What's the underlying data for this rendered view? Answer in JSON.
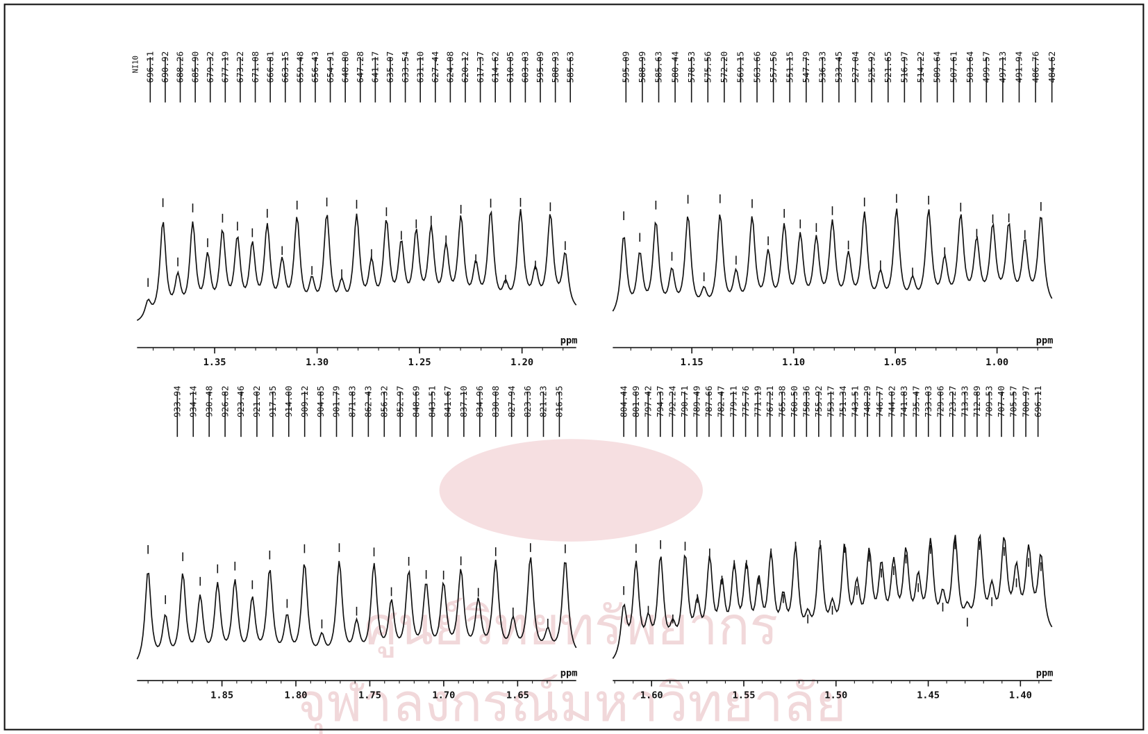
{
  "header_mark": "NI10",
  "panels": [
    {
      "peak_labels": [
        "696.11",
        "690.92",
        "688.26",
        "685.90",
        "679.32",
        "677.19",
        "673.22",
        "671.08",
        "666.81",
        "663.15",
        "659.48",
        "656.43",
        "654.91",
        "648.80",
        "647.28",
        "641.17",
        "635.07",
        "633.54",
        "631.10",
        "627.44",
        "624.08",
        "620.12",
        "617.37",
        "614.62",
        "610.05",
        "603.03",
        "595.09",
        "588.93",
        "585.63"
      ],
      "axis_ticks": [
        "1.35",
        "1.30",
        "1.25",
        "1.20"
      ],
      "axis_unit": "ppm"
    },
    {
      "peak_labels": [
        "595.09",
        "588.99",
        "585.63",
        "580.44",
        "578.53",
        "575.56",
        "572.20",
        "569.15",
        "563.66",
        "557.56",
        "551.15",
        "547.79",
        "536.33",
        "533.45",
        "527.04",
        "525.92",
        "521.65",
        "516.97",
        "514.22",
        "509.64",
        "507.61",
        "503.64",
        "499.57",
        "497.13",
        "491.94",
        "486.76",
        "484.62"
      ],
      "axis_ticks": [
        "1.15",
        "1.10",
        "1.05",
        "1.00"
      ],
      "axis_unit": "ppm"
    },
    {
      "peak_labels": [
        "933.94",
        "934.14",
        "930.48",
        "926.82",
        "923.46",
        "921.02",
        "917.35",
        "914.00",
        "909.12",
        "904.85",
        "901.79",
        "871.83",
        "862.43",
        "856.32",
        "852.97",
        "848.69",
        "843.51",
        "841.67",
        "837.10",
        "834.96",
        "830.08",
        "827.94",
        "823.36",
        "821.23",
        "816.35"
      ],
      "axis_ticks": [
        "1.85",
        "1.80",
        "1.75",
        "1.70",
        "1.65"
      ],
      "axis_unit": "ppm"
    },
    {
      "peak_labels": [
        "804.44",
        "801.09",
        "797.42",
        "794.37",
        "792.24",
        "790.71",
        "789.49",
        "787.66",
        "782.47",
        "779.11",
        "775.76",
        "771.19",
        "767.21",
        "765.38",
        "760.50",
        "758.36",
        "755.92",
        "753.17",
        "751.34",
        "743.51",
        "748.29",
        "746.77",
        "744.02",
        "741.83",
        "735.47",
        "733.03",
        "729.06",
        "723.27",
        "713.33",
        "712.89",
        "709.53",
        "707.40",
        "705.57",
        "700.97",
        "696.11"
      ],
      "axis_ticks": [
        "1.60",
        "1.55",
        "1.50",
        "1.45",
        "1.40"
      ],
      "axis_unit": "ppm"
    }
  ],
  "watermark": [
    "ศูนย์วิทยทรัพยากร",
    "จุฬาลงกรณ์มหาวิทยาลัย"
  ]
}
